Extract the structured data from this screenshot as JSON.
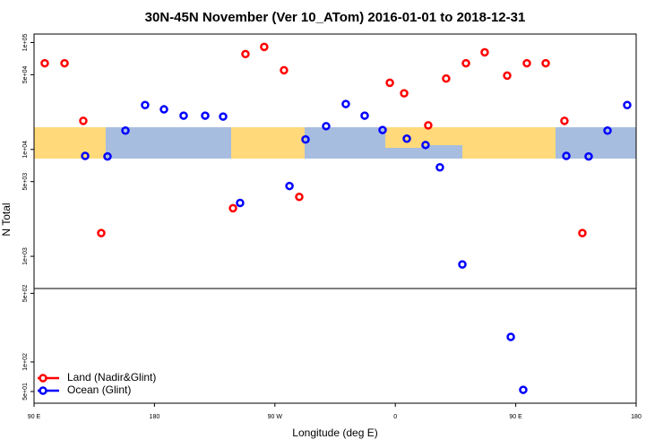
{
  "chart_data": [
    {
      "type": "scatter",
      "title": "30N-45N November (Ver 10_ATom)   2016-01-01 to 2018-12-31",
      "y_label": "N Total",
      "log_y": true,
      "xlim": [
        90,
        540
      ],
      "ylim": [
        500,
        120000
      ],
      "yticks": [
        {
          "value": 100000,
          "label": "1e+05"
        },
        {
          "value": 50000,
          "label": "5e+04"
        },
        {
          "value": 10000,
          "label": "1e+04"
        },
        {
          "value": 5000,
          "label": "5e+03"
        },
        {
          "value": 1000,
          "label": "1e+03"
        }
      ],
      "series": [
        {
          "color": "#ff0000",
          "x": [
            98,
            112.8,
            126.8,
            140.2,
            238.7,
            248,
            262,
            276.8,
            288.2,
            355.9,
            366.6,
            384.6,
            398,
            412.8,
            426.8,
            443.6,
            458.3,
            472.4,
            486.4,
            499.8
          ],
          "values": [
            64000,
            64000,
            18500,
            1650,
            2820,
            78000,
            91000,
            55000,
            3600,
            42000,
            33500,
            16800,
            46000,
            64000,
            81000,
            49000,
            64000,
            64000,
            18500,
            1650
          ]
        },
        {
          "color": "#0000ff",
          "x": [
            128.2,
            144.9,
            158.3,
            173,
            187.1,
            201.8,
            217.9,
            231.3,
            244,
            280.9,
            292.9,
            308.3,
            323,
            337.1,
            350.5,
            368.6,
            382.6,
            393.3,
            410.1,
            487.8,
            504.5,
            518.6,
            533.3
          ],
          "values": [
            8700,
            8600,
            15000,
            26000,
            23700,
            20700,
            20700,
            20300,
            3160,
            4550,
            12400,
            16500,
            26600,
            20700,
            15200,
            12600,
            11000,
            6800,
            840,
            8700,
            8600,
            15000,
            26000
          ]
        }
      ]
    },
    {
      "type": "scatter",
      "x_label": "Longitude (deg E)",
      "log_y": true,
      "legend": "bottom-left",
      "xlim": [
        90,
        540
      ],
      "xticks": [
        {
          "value": 90,
          "label": "90 E"
        },
        180,
        {
          "value": 270,
          "label": "90 W"
        },
        {
          "value": 360,
          "label": "0"
        },
        {
          "value": 450,
          "label": "90 E"
        },
        {
          "value": 540,
          "label": "180"
        }
      ],
      "ylim": [
        38,
        560
      ],
      "yticks": [
        {
          "value": 500,
          "label": "5e+02"
        },
        {
          "value": 100,
          "label": "1e+02"
        },
        {
          "value": 50,
          "label": "5e+01"
        }
      ],
      "series": [
        {
          "name": "Land (Nadir&Glint)",
          "color": "#ff0000",
          "x": [],
          "values": []
        },
        {
          "name": "Ocean (Glint)",
          "color": "#0000ff",
          "x": [
            446.3,
            455.6
          ],
          "values": [
            180,
            52
          ]
        }
      ]
    }
  ]
}
